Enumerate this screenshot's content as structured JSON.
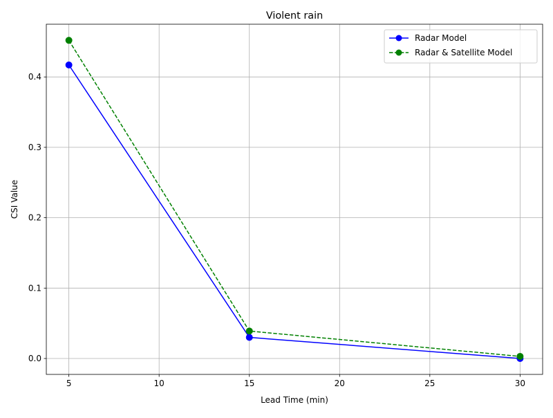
{
  "chart_data": {
    "type": "line",
    "title": "Violent rain",
    "xlabel": "Lead Time (min)",
    "ylabel": "CSI Value",
    "x": [
      5,
      15,
      30
    ],
    "xlim": [
      3.75,
      31.25
    ],
    "ylim": [
      -0.0226,
      0.4749
    ],
    "xticks": [
      5,
      10,
      15,
      20,
      25,
      30
    ],
    "yticks": [
      0.0,
      0.1,
      0.2,
      0.3,
      0.4
    ],
    "ytick_labels": [
      "0.0",
      "0.1",
      "0.2",
      "0.3",
      "0.4"
    ],
    "grid": true,
    "legend_position": "top-right",
    "series": [
      {
        "name": "Radar Model",
        "values": [
          0.417,
          0.03,
          0.0
        ],
        "color": "#0000ff",
        "linestyle": "solid",
        "marker": "circle"
      },
      {
        "name": "Radar & Satellite Model",
        "values": [
          0.452,
          0.039,
          0.003
        ],
        "color": "#008000",
        "linestyle": "dashed",
        "marker": "circle"
      }
    ]
  }
}
